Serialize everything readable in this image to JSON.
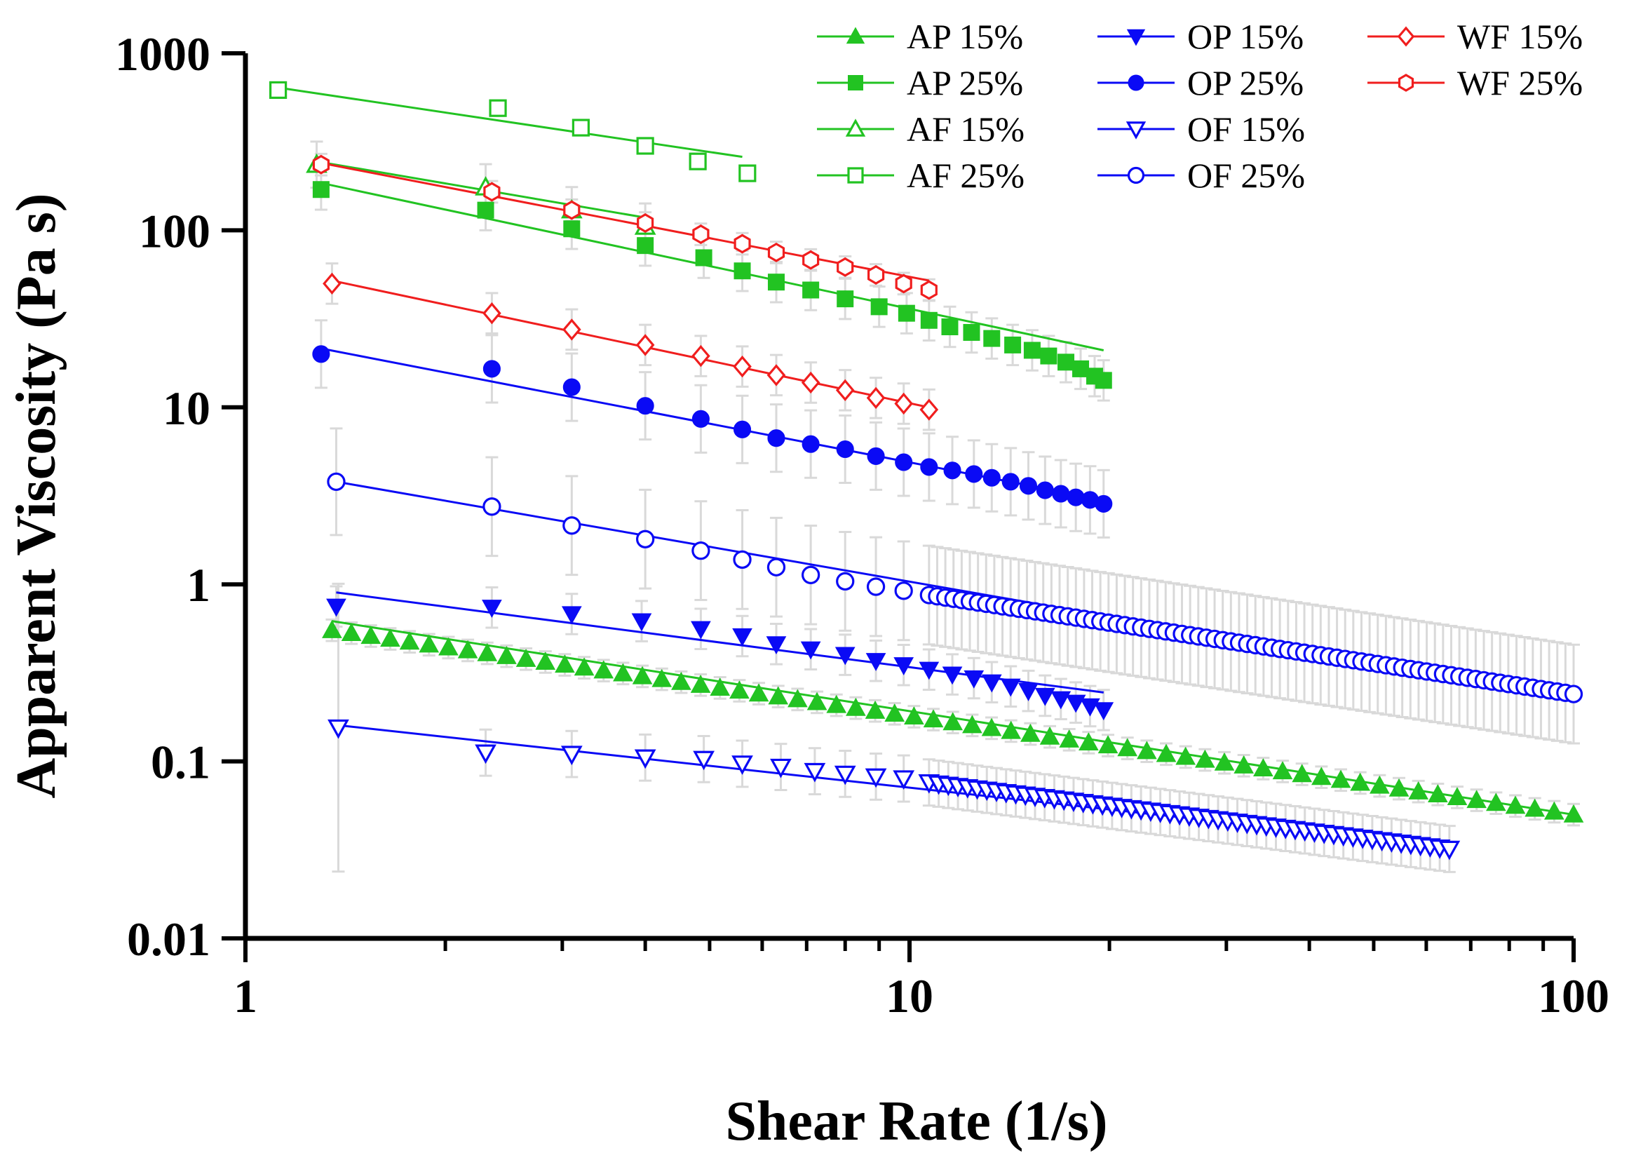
{
  "chart_data": {
    "type": "scatter",
    "title": "",
    "xlabel": "Shear Rate (1/s)",
    "ylabel": "Apparent Viscosity (Pa s)",
    "xscale": "log",
    "yscale": "log",
    "xlim": [
      1,
      100
    ],
    "ylim": [
      0.01,
      1000
    ],
    "grid": false,
    "legend_position": "top-right",
    "x_ticks": [
      {
        "value": 1,
        "label": "1"
      },
      {
        "value": 10,
        "label": "10"
      },
      {
        "value": 100,
        "label": "100"
      }
    ],
    "y_ticks": [
      {
        "value": 0.01,
        "label": "0.01"
      },
      {
        "value": 0.1,
        "label": "0.1"
      },
      {
        "value": 1,
        "label": "1"
      },
      {
        "value": 10,
        "label": "10"
      },
      {
        "value": 100,
        "label": "100"
      },
      {
        "value": 1000,
        "label": "1000"
      }
    ],
    "series": [
      {
        "name": "AP 15%",
        "color": "#22c322",
        "marker": "triangle-up",
        "filled": true,
        "start": [
          1.35,
          0.55
        ],
        "end": [
          100,
          0.05
        ],
        "points": 65,
        "fit": {
          "x": [
            1.35,
            100
          ],
          "y": [
            0.62,
            0.05
          ]
        }
      },
      {
        "name": "AP 25%",
        "color": "#22c322",
        "marker": "square",
        "filled": true,
        "x": [
          1.3,
          2.3,
          3.1,
          4.0,
          4.9,
          5.6,
          6.3,
          7.1,
          8.0,
          9.0,
          9.9,
          10.7,
          11.5,
          12.4,
          13.3,
          14.3,
          15.3,
          16.2,
          17.2,
          18.1,
          19.0,
          19.6
        ],
        "y": [
          170,
          130,
          102,
          82,
          70,
          59,
          51,
          46,
          41,
          37,
          34,
          31,
          28.5,
          26.5,
          24.5,
          22.5,
          21,
          19.5,
          18,
          16.5,
          15,
          14.2
        ],
        "fit": {
          "x": [
            1.3,
            19.6
          ],
          "y": [
            185,
            21
          ]
        }
      },
      {
        "name": "AF 15%",
        "color": "#22c322",
        "marker": "triangle-up",
        "filled": false,
        "x": [
          1.28,
          2.3,
          3.1,
          4.0
        ],
        "y": [
          235,
          175,
          130,
          105
        ],
        "fit": {
          "x": [
            1.28,
            4.0
          ],
          "y": [
            245,
            118
          ]
        }
      },
      {
        "name": "AF 25%",
        "color": "#22c322",
        "marker": "square",
        "filled": false,
        "x": [
          1.12,
          2.4,
          3.2,
          4.0,
          4.8,
          5.7
        ],
        "y": [
          620,
          490,
          380,
          300,
          245,
          210
        ],
        "fit": {
          "x": [
            1.12,
            5.6
          ],
          "y": [
            640,
            260
          ]
        }
      },
      {
        "name": "OP 15%",
        "color": "#0a0af5",
        "marker": "triangle-down",
        "filled": true,
        "x": [
          1.37,
          2.35,
          3.1,
          3.95,
          4.85,
          5.6,
          6.3,
          7.1,
          8.0,
          8.9,
          9.8,
          10.7,
          11.6,
          12.5,
          13.3,
          14.2,
          15.1,
          16.0,
          16.9,
          17.8,
          18.7,
          19.6
        ],
        "y": [
          0.75,
          0.74,
          0.68,
          0.62,
          0.56,
          0.51,
          0.46,
          0.43,
          0.4,
          0.37,
          0.35,
          0.33,
          0.31,
          0.295,
          0.28,
          0.265,
          0.25,
          0.235,
          0.225,
          0.215,
          0.205,
          0.195
        ],
        "fit": {
          "x": [
            1.37,
            19.6
          ],
          "y": [
            0.9,
            0.245
          ]
        }
      },
      {
        "name": "OP 25%",
        "color": "#0a0af5",
        "marker": "circle",
        "filled": true,
        "x": [
          1.3,
          2.35,
          3.1,
          4.0,
          4.85,
          5.6,
          6.3,
          7.1,
          8.0,
          8.9,
          9.8,
          10.7,
          11.6,
          12.5,
          13.3,
          14.2,
          15.1,
          16.0,
          16.9,
          17.8,
          18.7,
          19.6
        ],
        "y": [
          20,
          16.5,
          13,
          10.2,
          8.6,
          7.5,
          6.7,
          6.2,
          5.8,
          5.3,
          4.9,
          4.6,
          4.4,
          4.2,
          4.0,
          3.8,
          3.6,
          3.4,
          3.25,
          3.1,
          3.0,
          2.85
        ],
        "fit": {
          "x": [
            1.3,
            19.6
          ],
          "y": [
            21.5,
            3.0
          ]
        }
      },
      {
        "name": "OF 15%",
        "color": "#0a0af5",
        "marker": "triangle-down",
        "filled": false,
        "x": [
          1.38,
          2.3,
          3.1,
          4.0,
          4.9,
          5.6,
          6.4,
          7.2,
          8.0,
          8.9,
          9.8
        ],
        "y": [
          0.155,
          0.112,
          0.11,
          0.105,
          0.103,
          0.097,
          0.093,
          0.088,
          0.085,
          0.082,
          0.08
        ],
        "tail_start": [
          10.7,
          0.076
        ],
        "tail_end": [
          65,
          0.032
        ],
        "tail_points": 55,
        "fit": {
          "x": [
            1.38,
            65
          ],
          "y": [
            0.16,
            0.033
          ]
        }
      },
      {
        "name": "OF 25%",
        "color": "#0a0af5",
        "marker": "circle",
        "filled": false,
        "x": [
          1.37,
          2.35,
          3.1,
          4.0,
          4.85,
          5.6,
          6.3,
          7.1,
          8.0,
          8.9,
          9.8
        ],
        "y": [
          3.8,
          2.75,
          2.15,
          1.8,
          1.55,
          1.38,
          1.25,
          1.13,
          1.04,
          0.97,
          0.92
        ],
        "tail_start": [
          10.7,
          0.87
        ],
        "tail_end": [
          100,
          0.24
        ],
        "tail_points": 80,
        "fit": {
          "x": [
            1.37,
            100
          ],
          "y": [
            3.8,
            0.23
          ]
        }
      },
      {
        "name": "WF 15%",
        "color": "#f01e1e",
        "marker": "diamond",
        "filled": false,
        "x": [
          1.35,
          2.35,
          3.1,
          4.0,
          4.85,
          5.6,
          6.3,
          7.1,
          8.0,
          8.9,
          9.8,
          10.7
        ],
        "y": [
          50,
          34,
          27.5,
          22.5,
          19.5,
          17,
          15.2,
          13.8,
          12.5,
          11.3,
          10.5,
          9.7
        ],
        "fit": {
          "x": [
            1.35,
            10.7
          ],
          "y": [
            52,
            10
          ]
        }
      },
      {
        "name": "WF 25%",
        "color": "#f01e1e",
        "marker": "hexagon",
        "filled": false,
        "x": [
          1.3,
          2.35,
          3.1,
          4.0,
          4.85,
          5.6,
          6.3,
          7.1,
          8.0,
          8.9,
          9.8,
          10.7
        ],
        "y": [
          235,
          165,
          130,
          110,
          95,
          84,
          75,
          68,
          62,
          56,
          50,
          46
        ],
        "fit": {
          "x": [
            1.3,
            10.7
          ],
          "y": [
            240,
            52
          ]
        }
      }
    ]
  }
}
